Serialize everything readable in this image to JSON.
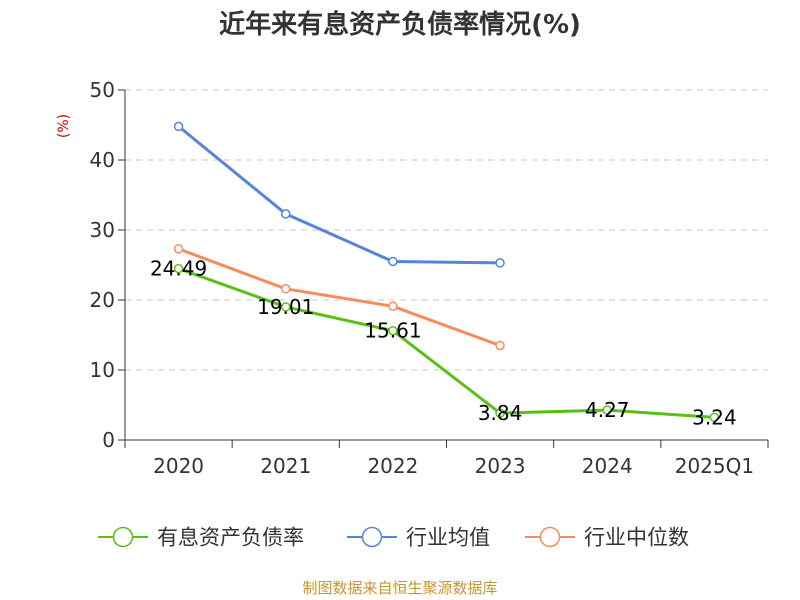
{
  "chart_data": {
    "type": "line",
    "title": "近年来有息资产负债率情况(%)",
    "ylabel": "(%)",
    "xlabel": "",
    "ylim": [
      0,
      50
    ],
    "yticks": [
      0,
      10,
      20,
      30,
      40,
      50
    ],
    "grid": true,
    "legend_position": "bottom",
    "categories": [
      "2020",
      "2021",
      "2022",
      "2023",
      "2024",
      "2025Q1"
    ],
    "series": [
      {
        "name": "有息资产负债率",
        "color": "#5ac018",
        "values": [
          24.49,
          19.01,
          15.61,
          3.84,
          4.27,
          3.24
        ],
        "labels": [
          "24.49",
          "19.01",
          "15.61",
          "3.84",
          "4.27",
          "3.24"
        ]
      },
      {
        "name": "行业均值",
        "color": "#5584dc",
        "values": [
          44.8,
          32.3,
          25.5,
          25.3,
          null,
          null
        ]
      },
      {
        "name": "行业中位数",
        "color": "#f58c5a",
        "values": [
          27.3,
          21.6,
          19.1,
          13.5,
          null,
          null
        ]
      }
    ],
    "source": "制图数据来自恒生聚源数据库",
    "ylabel_color": "#cc0000",
    "source_color": "#c8962d"
  }
}
